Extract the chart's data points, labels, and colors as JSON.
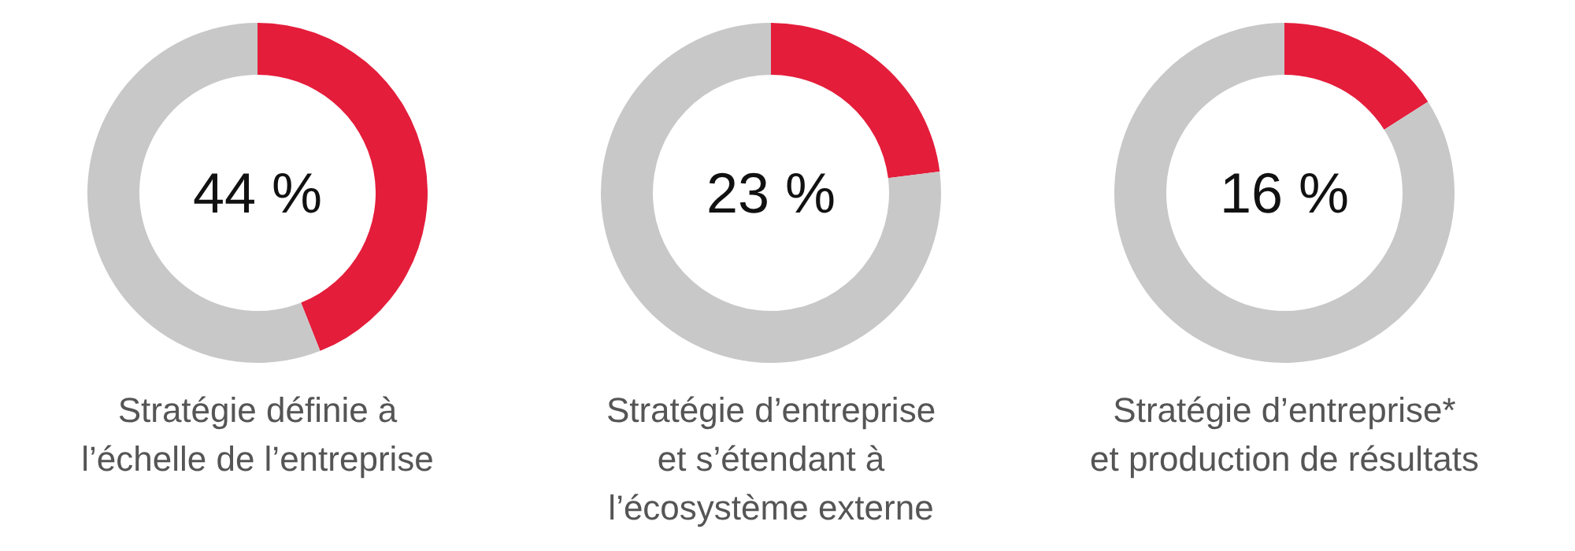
{
  "chart_data": [
    {
      "type": "donut",
      "title": "Stratégie définie à\nl’échelle de l’entreprise",
      "categories": [
        null,
        null
      ],
      "values": [
        44,
        56
      ],
      "colors": [
        "#e41d3b",
        "#c8c8c8"
      ],
      "value_labels": [
        "44 %",
        null
      ]
    },
    {
      "type": "donut",
      "title": "Stratégie d’entreprise\net s’étendant à\nl’écosystème externe",
      "categories": [
        null,
        null
      ],
      "values": [
        23,
        77
      ],
      "colors": [
        "#e41d3b",
        "#c8c8c8"
      ],
      "value_labels": [
        "23 %",
        null
      ]
    },
    {
      "type": "donut",
      "title": "Stratégie d’entreprise*\net production de résultats",
      "categories": [
        null,
        null
      ],
      "values": [
        16,
        84
      ],
      "colors": [
        "#e41d3b",
        "#c8c8c8"
      ],
      "value_labels": [
        "16 %",
        null
      ]
    }
  ]
}
